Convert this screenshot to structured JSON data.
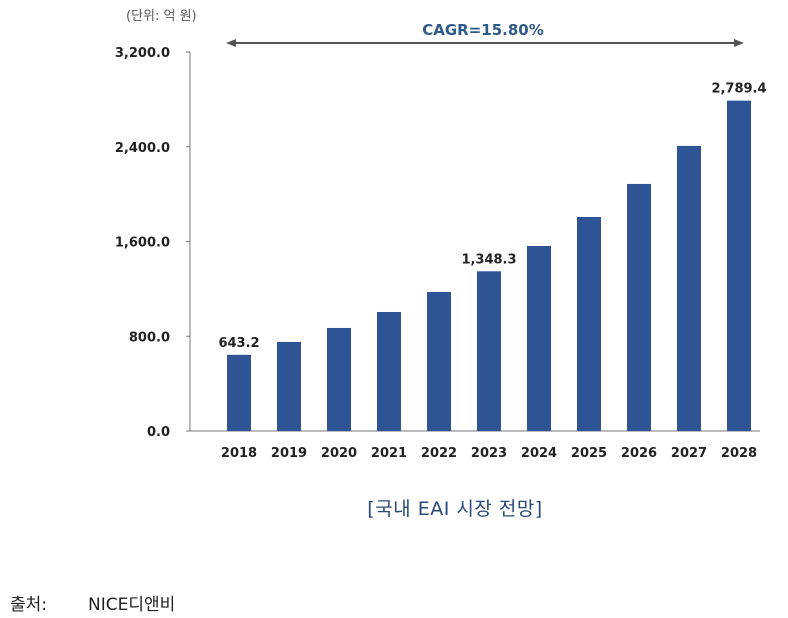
{
  "chart_data": {
    "type": "bar",
    "unit_label": "(단위: 억 원)",
    "categories": [
      "2018",
      "2019",
      "2020",
      "2021",
      "2022",
      "2023",
      "2024",
      "2025",
      "2026",
      "2027",
      "2028"
    ],
    "values": [
      643.2,
      752,
      870,
      1005,
      1174,
      1348.3,
      1562,
      1807,
      2086,
      2407,
      2789.4
    ],
    "data_labels": {
      "0": "643.2",
      "5": "1,348.3",
      "10": "2,789.4"
    },
    "ylim": [
      0,
      3200
    ],
    "yticks": [
      0,
      800,
      1600,
      2400,
      3200
    ],
    "ytick_labels": [
      "0.0",
      "800.0",
      "1,600.0",
      "2,400.0",
      "3,200.0"
    ],
    "annotation": "CAGR=15.80%",
    "bar_color": "#2e5496",
    "grid": false,
    "legend": "none"
  },
  "caption": "[국내 EAI 시장 전망]",
  "source": {
    "label": "출처:",
    "value": "NICE디앤비"
  }
}
